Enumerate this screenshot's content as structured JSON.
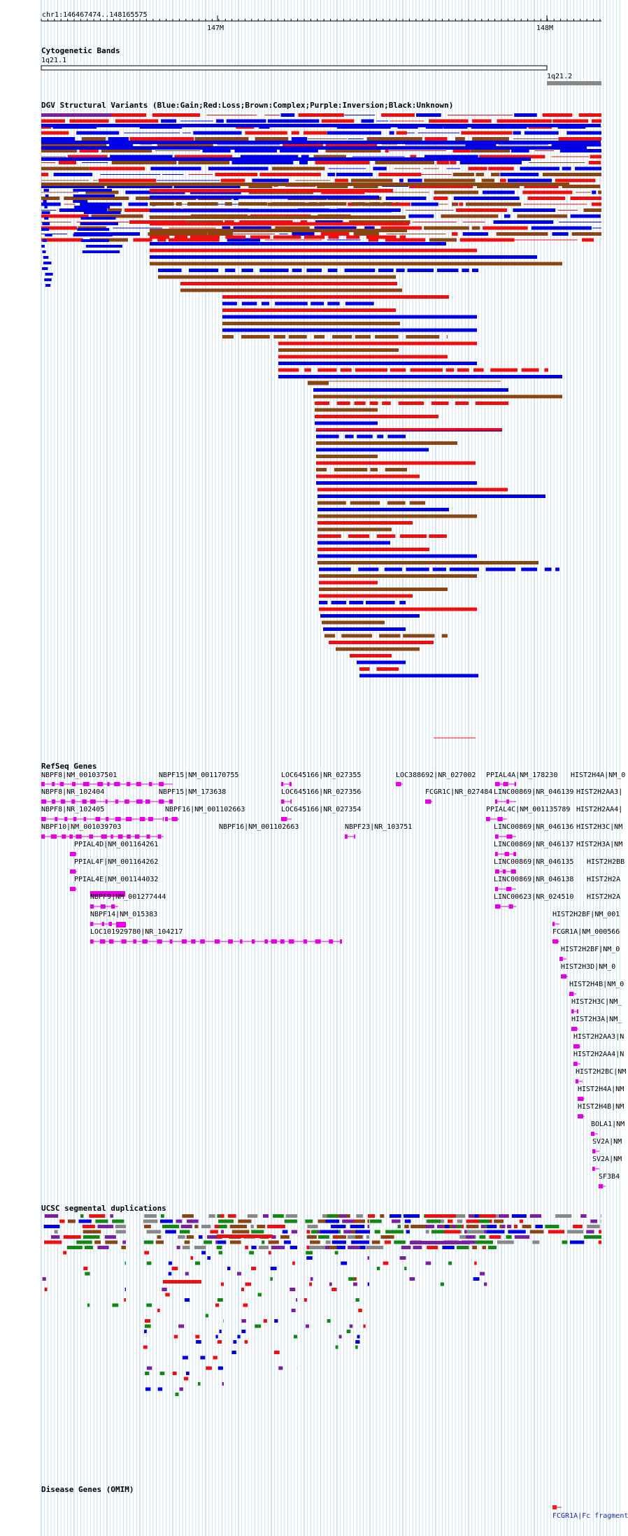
{
  "position": "chr1:146467474..148165575",
  "ruler": {
    "labels": [
      "147M",
      "148M"
    ]
  },
  "tracks": {
    "cytobands": {
      "title": "Cytogenetic Bands",
      "bands": [
        "1q21.1",
        "1q21.2"
      ]
    },
    "dgv": {
      "title": "DGV Structural Variants (Blue:Gain;Red:Loss;Brown:Complex;Purple:Inversion;Black:Unknown)"
    },
    "refseq": {
      "title": "RefSeq Genes"
    },
    "segdup": {
      "title": "UCSC segmental duplications"
    },
    "omim": {
      "title": "Disease Genes (OMIM)",
      "feature": "FCGR1A|Fc fragment"
    }
  },
  "colors": {
    "gain": "#0000e6",
    "loss": "#ee1010",
    "complex": "#8b4513",
    "inversion": "#7b1fa2",
    "unknown": "#000000",
    "gene": "#e600e6",
    "segdup_green": "#118811",
    "segdup_gray": "#888888",
    "omim": "#ee2222"
  },
  "genes": [
    "NBPF8|NM_001037501",
    "NBPF8|NR_102404",
    "NBPF8|NR_102405",
    "NBPF10|NM_001039703",
    "PPIAL4D|NM_001164261",
    "PPIAL4F|NM_001164262",
    "PPIAL4E|NM_001144032",
    "NBPF9|NM_001277444",
    "NBPF14|NM_015383",
    "LOC101929780|NR_104217",
    "NBPF15|NM_001170755",
    "NBPF15|NM_173638",
    "NBPF16|NM_001102663",
    "NBPF16|NM_001102663",
    "LOC645166|NR_027355",
    "LOC645166|NR_027356",
    "LOC645166|NR_027354",
    "NBPF23|NR_103751",
    "LOC388692|NR_027002",
    "FCGR1C|NR_027484",
    "PPIAL4A|NM_178230",
    "LINC00869|NR_046139",
    "PPIAL4C|NM_001135789",
    "LINC00869|NR_046136",
    "LINC00869|NR_046137",
    "LINC00869|NR_046135",
    "LINC00869|NR_046138",
    "LINC00623|NR_024510",
    "HIST2H4A|NM_0",
    "HIST2H2AA3|",
    "HIST2H2AA4|",
    "HIST2H3C|NM",
    "HIST2H3A|NM",
    "HIST2H2BB",
    "HIST2H2A",
    "HIST2H2A",
    "HIST2H2BF|NM_001",
    "FCGR1A|NM_000566",
    "HIST2H2BF|NM_0",
    "HIST2H3D|NM_0",
    "HIST2H4B|NM_0",
    "HIST2H3C|NM_",
    "HIST2H3A|NM_",
    "HIST2H2AA3|N",
    "HIST2H2AA4|N",
    "HIST2H2BC|NM",
    "HIST2H4A|NM",
    "HIST2H4B|NM",
    "BOLA1|NM",
    "SV2A|NM",
    "SV2A|NM",
    "SF3B4"
  ]
}
